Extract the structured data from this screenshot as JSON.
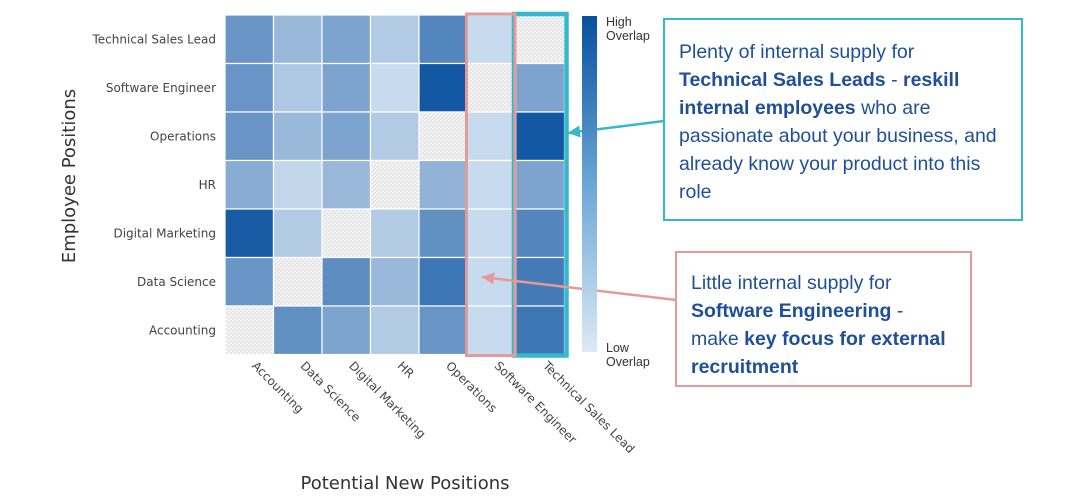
{
  "chart_data": {
    "type": "heatmap",
    "rows": [
      "Technical Sales Lead",
      "Software Engineer",
      "Operations",
      "HR",
      "Digital Marketing",
      "Data Science",
      "Accounting"
    ],
    "columns": [
      "Accounting",
      "Data Science",
      "Digital Marketing",
      "HR",
      "Operations",
      "Software Engineer",
      "Technical Sales Lead"
    ],
    "values": [
      [
        0.55,
        0.32,
        0.45,
        0.2,
        0.65,
        0.1,
        null
      ],
      [
        0.55,
        0.22,
        0.45,
        0.1,
        0.95,
        null,
        0.45
      ],
      [
        0.55,
        0.32,
        0.45,
        0.2,
        null,
        0.1,
        0.95
      ],
      [
        0.4,
        0.12,
        0.32,
        null,
        0.35,
        0.1,
        0.45
      ],
      [
        0.92,
        0.2,
        null,
        0.2,
        0.58,
        0.1,
        0.65
      ],
      [
        0.55,
        null,
        0.6,
        0.32,
        0.75,
        0.1,
        0.72
      ],
      [
        null,
        0.58,
        0.45,
        0.2,
        0.55,
        0.1,
        0.75
      ]
    ],
    "xlabel": "Potential New Positions",
    "ylabel": "Employee Positions",
    "legend": {
      "high": [
        "High",
        "Overlap"
      ],
      "low": [
        "Low",
        "Overlap"
      ]
    },
    "colors": {
      "high": "#08509e",
      "low": "#dde9f6",
      "highlight_column": "#35b8cd",
      "highlight_low": "#e59a9a"
    }
  },
  "callouts": {
    "teal": {
      "p1": "Plenty of internal supply for ",
      "b1": "Technical Sales Leads",
      "p2": " - ",
      "b2": "reskill internal employees",
      "p3": "  who are passionate about your business, and already know your product into this role"
    },
    "pink": {
      "p1": "Little internal supply for ",
      "b1": "Software Engineering",
      "p2": " - make ",
      "b2": "key focus for external recruitment"
    }
  }
}
